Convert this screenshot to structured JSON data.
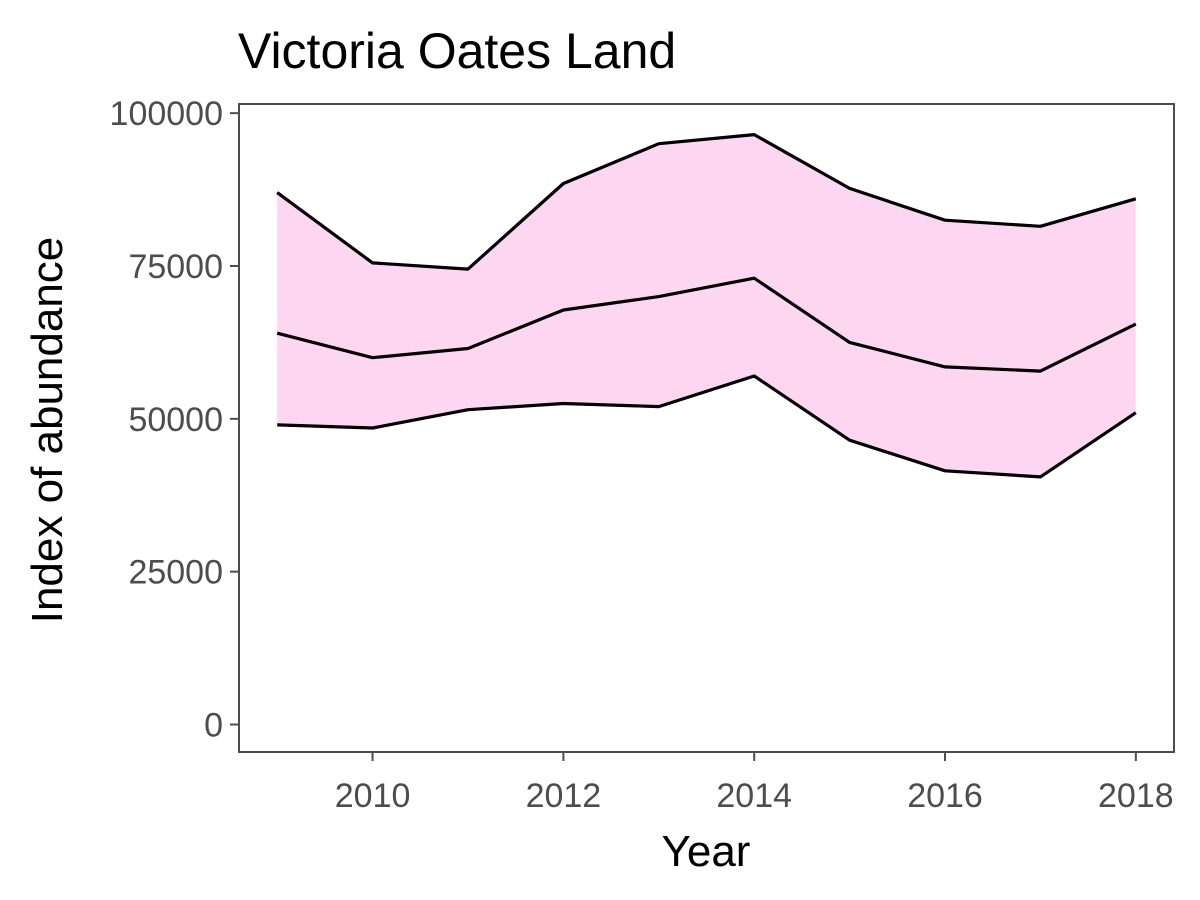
{
  "chart_data": {
    "type": "area",
    "title": "Victoria Oates Land",
    "xlabel": "Year",
    "ylabel": "Index of abundance",
    "xlim": [
      2008.6,
      2018.4
    ],
    "ylim": [
      -4500,
      101500
    ],
    "x_ticks": [
      2010,
      2012,
      2014,
      2016,
      2018
    ],
    "y_ticks": [
      0,
      25000,
      50000,
      75000,
      100000
    ],
    "x_tick_labels": [
      "2010",
      "2012",
      "2014",
      "2016",
      "2018"
    ],
    "y_tick_labels": [
      "0",
      "25000",
      "50000",
      "75000",
      "100000"
    ],
    "x": [
      2009,
      2010,
      2011,
      2012,
      2013,
      2014,
      2015,
      2016,
      2017,
      2018
    ],
    "series": [
      {
        "role": "upper",
        "values": [
          87000,
          75500,
          74500,
          88500,
          95000,
          96500,
          87700,
          82500,
          81500,
          86000
        ]
      },
      {
        "role": "estimate",
        "values": [
          64000,
          60000,
          61500,
          67800,
          70000,
          73000,
          62500,
          58500,
          57800,
          65500
        ]
      },
      {
        "role": "lower",
        "values": [
          49000,
          48500,
          51500,
          52500,
          52000,
          57000,
          46500,
          41500,
          40500,
          51000
        ]
      }
    ],
    "band_fill": "#fdd6f2",
    "line_color": "#000000",
    "panel_border_color": "#4d4d4d",
    "grid": false,
    "legend": "none"
  }
}
